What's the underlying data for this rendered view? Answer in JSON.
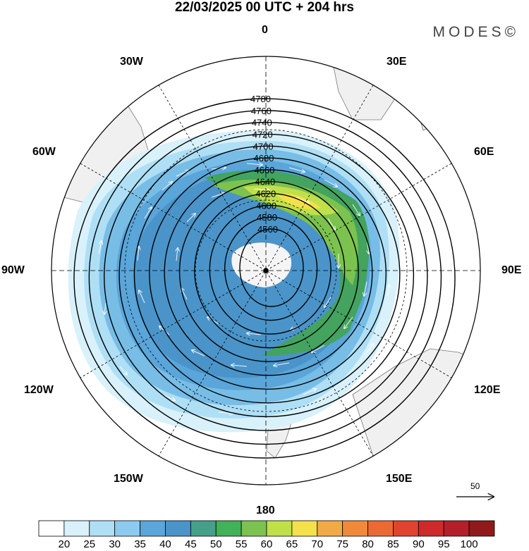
{
  "title": "22/03/2025  00 UTC  + 204 hrs",
  "brand": "MODES©",
  "meridian_labels": {
    "n": "0",
    "ne1": "30E",
    "ne2": "60E",
    "e": "90E",
    "se2": "120E",
    "se1": "150E",
    "s": "180",
    "sw1": "150W",
    "sw2": "120W",
    "w": "90W",
    "nw2": "60W",
    "nw1": "30W"
  },
  "reference_vector": {
    "label": "50"
  },
  "colorbar": {
    "labels": [
      "20",
      "25",
      "30",
      "35",
      "40",
      "45",
      "50",
      "55",
      "60",
      "65",
      "70",
      "75",
      "80",
      "85",
      "90",
      "95",
      "100"
    ],
    "colors": [
      "#ffffff",
      "#d8f1fb",
      "#aedff5",
      "#8ccbef",
      "#5aa5d9",
      "#4a94c9",
      "#45a08a",
      "#43b05a",
      "#7cc24f",
      "#bfe04a",
      "#f3e04a",
      "#f2aa46",
      "#f08a3a",
      "#eb6a34",
      "#e0442e",
      "#cd2a2a",
      "#b4202a",
      "#8f1a1a"
    ]
  },
  "contour_labels": [
    "4780",
    "4760",
    "4740",
    "4720",
    "4700",
    "4680",
    "4660",
    "4640",
    "4620",
    "4600",
    "4580",
    "4560"
  ]
}
